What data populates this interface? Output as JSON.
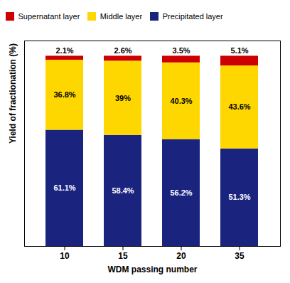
{
  "chart_data": {
    "type": "bar",
    "stacked": true,
    "categories": [
      "10",
      "15",
      "20",
      "35"
    ],
    "xlabel": "WDM passing number",
    "ylabel": "Yield of fractionation (%)",
    "ylim": [
      0,
      108
    ],
    "yticks": [],
    "tick_labels": "x",
    "grid": false,
    "legend": "upper left",
    "data_labels": true,
    "series": [
      {
        "name": "Precipitated layer",
        "color": "#1a237e",
        "values": [
          61.1,
          58.4,
          56.2,
          51.3
        ],
        "value_labels": [
          "61.1%",
          "58.4%",
          "56.2%",
          "51.3%"
        ]
      },
      {
        "name": "Middle layer",
        "color": "#FFD700",
        "values": [
          36.8,
          39.0,
          40.3,
          43.6
        ],
        "value_labels": [
          "36.8%",
          "39%",
          "40.3%",
          "43.6%"
        ]
      },
      {
        "name": "Supernatant layer",
        "color": "#cc0000",
        "values": [
          2.1,
          2.6,
          3.5,
          5.1
        ],
        "value_labels": [
          "2.1%",
          "2.6%",
          "3.5%",
          "5.1%"
        ]
      }
    ]
  }
}
